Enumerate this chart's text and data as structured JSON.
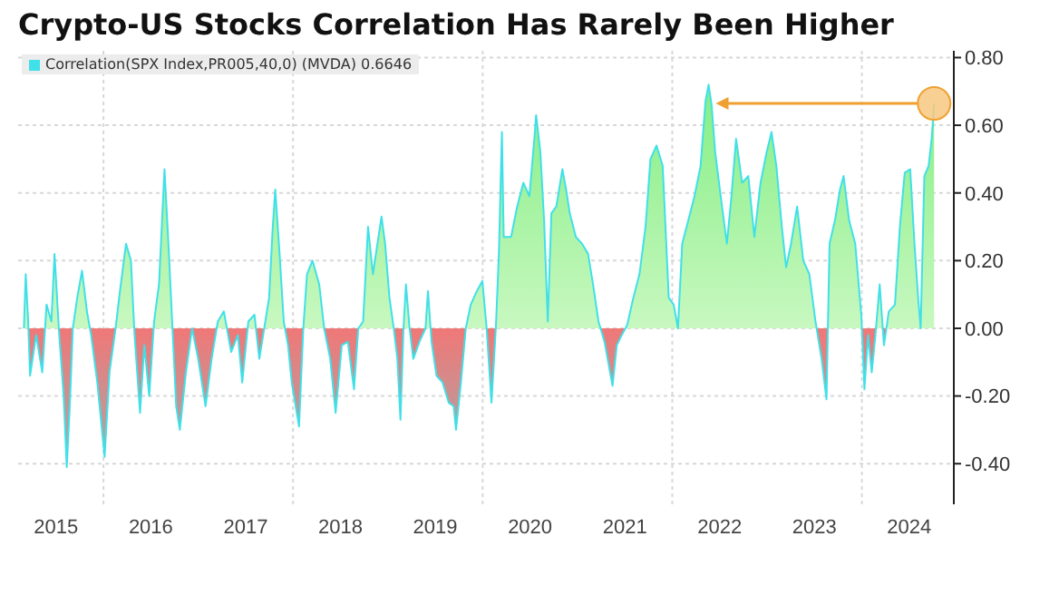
{
  "chart_data": {
    "type": "area",
    "title": "Crypto-US Stocks Correlation Has Rarely Been Higher",
    "legend": "top left",
    "grid": true,
    "xlim": [
      2015.1,
      2024.97
    ],
    "xticks": [
      {
        "value": 2015.5,
        "label": "2015"
      },
      {
        "value": 2016.5,
        "label": "2016"
      },
      {
        "value": 2017.5,
        "label": "2017"
      },
      {
        "value": 2018.5,
        "label": "2018"
      },
      {
        "value": 2019.5,
        "label": "2019"
      },
      {
        "value": 2020.5,
        "label": "2020"
      },
      {
        "value": 2021.5,
        "label": "2021"
      },
      {
        "value": 2022.5,
        "label": "2022"
      },
      {
        "value": 2023.5,
        "label": "2023"
      },
      {
        "value": 2024.5,
        "label": "2024"
      },
      {
        "value": 2016,
        "label": null
      },
      {
        "value": 2018,
        "label": null
      },
      {
        "value": 2020,
        "label": null
      },
      {
        "value": 2022,
        "label": null
      },
      {
        "value": 2024,
        "label": null
      }
    ],
    "ylim": [
      -0.52,
      0.82
    ],
    "yticks": [
      {
        "value": -0.4,
        "label": "-0.40"
      },
      {
        "value": -0.2,
        "label": "-0.20"
      },
      {
        "value": 0,
        "label": "0.00"
      },
      {
        "value": 0.2,
        "label": "0.20"
      },
      {
        "value": 0.4,
        "label": "0.40"
      },
      {
        "value": 0.6,
        "label": "0.60"
      },
      {
        "value": 0.8,
        "label": "0.80"
      }
    ],
    "x": [
      2015.161,
      2015.18,
      2015.206,
      2015.226,
      2015.29,
      2015.355,
      2015.4,
      2015.451,
      2015.484,
      2015.529,
      2015.58,
      2015.613,
      2015.645,
      2015.677,
      2015.723,
      2015.774,
      2015.826,
      2015.87,
      2015.935,
      2016.012,
      2016.064,
      2016.128,
      2016.174,
      2016.238,
      2016.29,
      2016.328,
      2016.386,
      2016.431,
      2016.483,
      2016.534,
      2016.586,
      2016.644,
      2016.689,
      2016.728,
      2016.767,
      2016.806,
      2016.87,
      2016.935,
      2016.999,
      2017.077,
      2017.141,
      2017.206,
      2017.27,
      2017.347,
      2017.418,
      2017.464,
      2017.528,
      2017.593,
      2017.644,
      2017.696,
      2017.747,
      2017.786,
      2017.812,
      2017.851,
      2017.902,
      2017.947,
      2017.986,
      2018.063,
      2018.108,
      2018.147,
      2018.205,
      2018.276,
      2018.328,
      2018.392,
      2018.449,
      2018.514,
      2018.578,
      2018.643,
      2018.688,
      2018.739,
      2018.791,
      2018.842,
      2018.901,
      2018.933,
      2018.971,
      2019.017,
      2019.062,
      2019.1,
      2019.133,
      2019.165,
      2019.191,
      2019.229,
      2019.268,
      2019.333,
      2019.397,
      2019.423,
      2019.461,
      2019.513,
      2019.577,
      2019.642,
      2019.694,
      2019.719,
      2019.771,
      2019.822,
      2019.874,
      2019.939,
      2019.997,
      2020.042,
      2020.093,
      2020.139,
      2020.171,
      2020.203,
      2020.222,
      2020.3,
      2020.364,
      2020.429,
      2020.493,
      2020.545,
      2020.564,
      2020.609,
      2020.648,
      2020.687,
      2020.725,
      2020.777,
      2020.841,
      2020.88,
      2020.919,
      2020.983,
      2021.048,
      2021.112,
      2021.164,
      2021.222,
      2021.286,
      2021.331,
      2021.37,
      2021.415,
      2021.467,
      2021.525,
      2021.589,
      2021.654,
      2021.718,
      2021.77,
      2021.834,
      2021.899,
      2021.963,
      2022.015,
      2022.06,
      2022.105,
      2022.17,
      2022.234,
      2022.299,
      2022.35,
      2022.383,
      2022.415,
      2022.453,
      2022.511,
      2022.576,
      2022.621,
      2022.673,
      2022.737,
      2022.802,
      2022.866,
      2022.931,
      2022.995,
      2023.047,
      2023.098,
      2023.156,
      2023.201,
      2023.253,
      2023.317,
      2023.382,
      2023.446,
      2023.511,
      2023.575,
      2023.627,
      2023.659,
      2023.717,
      2023.769,
      2023.807,
      2023.865,
      2023.93,
      2023.994,
      2024.027,
      2024.065,
      2024.104,
      2024.143,
      2024.188,
      2024.233,
      2024.284,
      2024.349,
      2024.401,
      2024.452,
      2024.51,
      2024.555,
      2024.594,
      2024.62,
      2024.659,
      2024.704,
      2024.736,
      2024.762
    ],
    "series": [
      {
        "name": "Correlation(SPX Index,PR005,40,0) (MVDA) 0.6646",
        "color": "#40e0e8",
        "values": [
          0,
          0.16,
          0.02,
          -0.14,
          -0.02,
          -0.13,
          0.07,
          0.02,
          0.22,
          0,
          -0.2,
          -0.41,
          -0.23,
          0,
          0.09,
          0.17,
          0.05,
          -0.02,
          -0.16,
          -0.38,
          -0.13,
          0,
          0.11,
          0.25,
          0.2,
          -0.02,
          -0.25,
          -0.05,
          -0.2,
          0.02,
          0.13,
          0.47,
          0.23,
          0,
          -0.23,
          -0.3,
          -0.13,
          0,
          -0.09,
          -0.23,
          -0.09,
          0.02,
          0.05,
          -0.07,
          -0.02,
          -0.16,
          0.02,
          0.04,
          -0.09,
          0,
          0.09,
          0.3,
          0.41,
          0.25,
          0.02,
          -0.05,
          -0.16,
          -0.29,
          0,
          0.16,
          0.2,
          0.13,
          0,
          -0.09,
          -0.25,
          -0.05,
          -0.04,
          -0.18,
          0,
          0.02,
          0.3,
          0.16,
          0.27,
          0.33,
          0.25,
          0.09,
          0,
          -0.09,
          -0.27,
          0,
          0.13,
          0,
          -0.09,
          -0.04,
          0,
          0.11,
          -0.04,
          -0.14,
          -0.16,
          -0.22,
          -0.23,
          -0.3,
          -0.16,
          0,
          0.07,
          0.11,
          0.14,
          0,
          -0.22,
          0,
          0.22,
          0.58,
          0.27,
          0.27,
          0.36,
          0.43,
          0.39,
          0.56,
          0.63,
          0.52,
          0.32,
          0.02,
          0.34,
          0.36,
          0.47,
          0.41,
          0.34,
          0.27,
          0.25,
          0.22,
          0.13,
          0.02,
          -0.04,
          -0.11,
          -0.17,
          -0.05,
          -0.02,
          0.01,
          0.09,
          0.16,
          0.3,
          0.5,
          0.54,
          0.48,
          0.09,
          0.07,
          0,
          0.25,
          0.32,
          0.39,
          0.48,
          0.67,
          0.72,
          0.66,
          0.52,
          0.39,
          0.25,
          0.38,
          0.56,
          0.43,
          0.45,
          0.27,
          0.43,
          0.52,
          0.58,
          0.48,
          0.3,
          0.18,
          0.25,
          0.36,
          0.2,
          0.16,
          0.02,
          -0.09,
          -0.21,
          0.25,
          0.32,
          0.41,
          0.45,
          0.32,
          0.25,
          0.04,
          -0.18,
          -0.02,
          -0.13,
          -0.02,
          0.13,
          -0.05,
          0.05,
          0.07,
          0.3,
          0.46,
          0.47,
          0.25,
          0.09,
          0,
          0.45,
          0.48,
          0.56,
          0.6646
        ]
      }
    ]
  }
}
